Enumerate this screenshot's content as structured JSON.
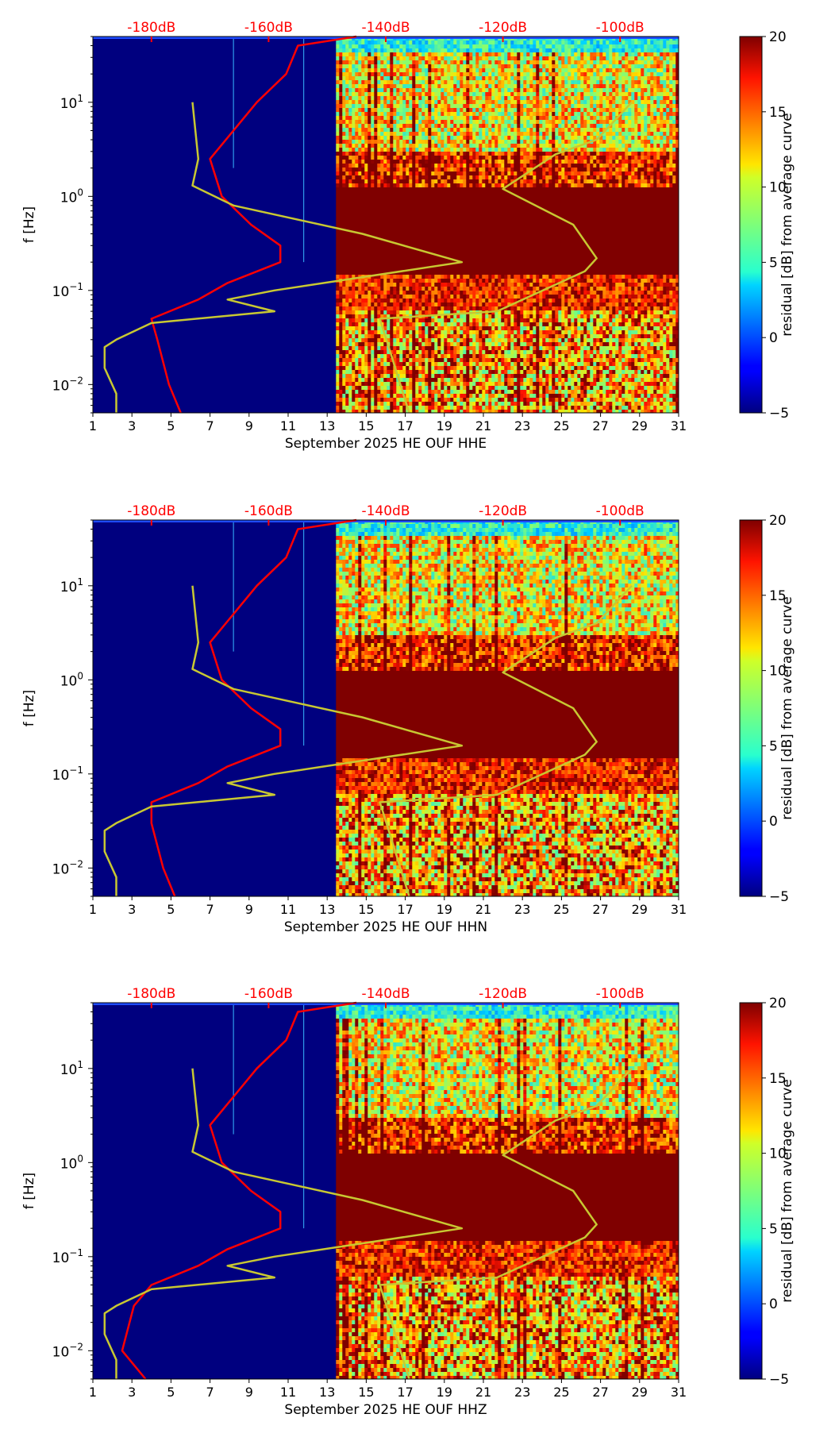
{
  "chart_data": [
    {
      "type": "heatmap",
      "xlabel": "September 2025 HE OUF  HHE",
      "ylabel": "f [Hz]",
      "x_ticks": [
        "1",
        "3",
        "5",
        "7",
        "9",
        "11",
        "13",
        "15",
        "17",
        "19",
        "21",
        "23",
        "25",
        "27",
        "29",
        "31"
      ],
      "y_ticks": [
        "10^-2",
        "10^-1",
        "10^0",
        "10^1"
      ],
      "xlim": [
        1,
        31
      ],
      "ylim_hz": [
        0.005,
        50
      ],
      "y_scale": "log",
      "top_axis_ticks": [
        "-180dB",
        "-160dB",
        "-140dB",
        "-120dB",
        "-100dB"
      ],
      "colorbar": {
        "label": "residual [dB] from average curve",
        "min": -5,
        "max": 20,
        "ticks": [
          "20",
          "15",
          "10",
          "5",
          "0",
          "−5"
        ],
        "colormap": "jet"
      },
      "data_start_day": 13.45,
      "series": [
        {
          "color": "#ff0000",
          "points": [
            [
              0.005,
              -175
            ],
            [
              0.01,
              -177
            ],
            [
              0.03,
              -179
            ],
            [
              0.05,
              -180
            ],
            [
              0.08,
              -172
            ],
            [
              0.12,
              -167
            ],
            [
              0.2,
              -158
            ],
            [
              0.3,
              -158
            ],
            [
              0.5,
              -163
            ],
            [
              1,
              -168
            ],
            [
              2.5,
              -170
            ],
            [
              5,
              -166
            ],
            [
              10,
              -162
            ],
            [
              20,
              -157
            ],
            [
              40,
              -155
            ],
            [
              50,
              -145
            ]
          ]
        },
        {
          "color": "#c8c832",
          "points": [
            [
              0.005,
              -186
            ],
            [
              0.008,
              -186
            ],
            [
              0.015,
              -188
            ],
            [
              0.025,
              -188
            ],
            [
              0.03,
              -186
            ],
            [
              0.045,
              -180
            ],
            [
              0.06,
              -159
            ],
            [
              0.08,
              -167
            ],
            [
              0.1,
              -159
            ],
            [
              0.2,
              -127
            ],
            [
              0.4,
              -144
            ],
            [
              0.8,
              -166
            ],
            [
              1.3,
              -173
            ],
            [
              2.5,
              -172
            ],
            [
              10,
              -173
            ]
          ]
        },
        {
          "color": "#c8c832",
          "points": [
            [
              0.005,
              -136
            ],
            [
              0.02,
              -139
            ],
            [
              0.05,
              -141
            ],
            [
              0.06,
              -121
            ],
            [
              0.16,
              -106
            ],
            [
              0.22,
              -104
            ],
            [
              0.5,
              -108
            ],
            [
              1.2,
              -120
            ],
            [
              2.8,
              -111
            ],
            [
              4,
              -104
            ],
            [
              10,
              -98
            ]
          ]
        }
      ]
    },
    {
      "type": "heatmap",
      "xlabel": "September 2025 HE OUF  HHN",
      "ylabel": "f [Hz]",
      "x_ticks": [
        "1",
        "3",
        "5",
        "7",
        "9",
        "11",
        "13",
        "15",
        "17",
        "19",
        "21",
        "23",
        "25",
        "27",
        "29",
        "31"
      ],
      "y_ticks": [
        "10^-2",
        "10^-1",
        "10^0",
        "10^1"
      ],
      "xlim": [
        1,
        31
      ],
      "ylim_hz": [
        0.005,
        50
      ],
      "y_scale": "log",
      "top_axis_ticks": [
        "-180dB",
        "-160dB",
        "-140dB",
        "-120dB",
        "-100dB"
      ],
      "colorbar": {
        "label": "residual [dB] from average curve",
        "min": -5,
        "max": 20,
        "ticks": [
          "20",
          "15",
          "10",
          "5",
          "0",
          "−5"
        ],
        "colormap": "jet"
      },
      "data_start_day": 13.45,
      "series": [
        {
          "color": "#ff0000",
          "points": [
            [
              0.005,
              -176
            ],
            [
              0.01,
              -178
            ],
            [
              0.03,
              -180
            ],
            [
              0.05,
              -180
            ],
            [
              0.08,
              -172
            ],
            [
              0.12,
              -167
            ],
            [
              0.2,
              -158
            ],
            [
              0.3,
              -158
            ],
            [
              0.5,
              -163
            ],
            [
              1,
              -168
            ],
            [
              2.5,
              -170
            ],
            [
              5,
              -166
            ],
            [
              10,
              -162
            ],
            [
              20,
              -157
            ],
            [
              40,
              -155
            ],
            [
              50,
              -145
            ]
          ]
        },
        {
          "color": "#c8c832",
          "points": [
            [
              0.005,
              -186
            ],
            [
              0.008,
              -186
            ],
            [
              0.015,
              -188
            ],
            [
              0.025,
              -188
            ],
            [
              0.03,
              -186
            ],
            [
              0.045,
              -180
            ],
            [
              0.06,
              -159
            ],
            [
              0.08,
              -167
            ],
            [
              0.1,
              -159
            ],
            [
              0.2,
              -127
            ],
            [
              0.4,
              -144
            ],
            [
              0.8,
              -166
            ],
            [
              1.3,
              -173
            ],
            [
              2.5,
              -172
            ],
            [
              10,
              -173
            ]
          ]
        },
        {
          "color": "#c8c832",
          "points": [
            [
              0.005,
              -136
            ],
            [
              0.02,
              -139
            ],
            [
              0.05,
              -141
            ],
            [
              0.06,
              -121
            ],
            [
              0.16,
              -106
            ],
            [
              0.22,
              -104
            ],
            [
              0.5,
              -108
            ],
            [
              1.2,
              -120
            ],
            [
              2.8,
              -111
            ],
            [
              4,
              -104
            ],
            [
              10,
              -98
            ]
          ]
        }
      ]
    },
    {
      "type": "heatmap",
      "xlabel": "September 2025 HE OUF  HHZ",
      "ylabel": "f [Hz]",
      "x_ticks": [
        "1",
        "3",
        "5",
        "7",
        "9",
        "11",
        "13",
        "15",
        "17",
        "19",
        "21",
        "23",
        "25",
        "27",
        "29",
        "31"
      ],
      "y_ticks": [
        "10^-2",
        "10^-1",
        "10^0",
        "10^1"
      ],
      "xlim": [
        1,
        31
      ],
      "ylim_hz": [
        0.005,
        50
      ],
      "y_scale": "log",
      "top_axis_ticks": [
        "-180dB",
        "-160dB",
        "-140dB",
        "-120dB",
        "-100dB"
      ],
      "colorbar": {
        "label": "residual [dB] from average curve",
        "min": -5,
        "max": 20,
        "ticks": [
          "20",
          "15",
          "10",
          "5",
          "0",
          "−5"
        ],
        "colormap": "jet"
      },
      "data_start_day": 13.45,
      "series": [
        {
          "color": "#ff0000",
          "points": [
            [
              0.005,
              -181
            ],
            [
              0.01,
              -185
            ],
            [
              0.03,
              -183
            ],
            [
              0.05,
              -180
            ],
            [
              0.08,
              -172
            ],
            [
              0.12,
              -167
            ],
            [
              0.2,
              -158
            ],
            [
              0.3,
              -158
            ],
            [
              0.5,
              -163
            ],
            [
              1,
              -168
            ],
            [
              2.5,
              -170
            ],
            [
              5,
              -166
            ],
            [
              10,
              -162
            ],
            [
              20,
              -157
            ],
            [
              40,
              -155
            ],
            [
              50,
              -145
            ]
          ]
        },
        {
          "color": "#c8c832",
          "points": [
            [
              0.005,
              -186
            ],
            [
              0.008,
              -186
            ],
            [
              0.015,
              -188
            ],
            [
              0.025,
              -188
            ],
            [
              0.03,
              -186
            ],
            [
              0.045,
              -180
            ],
            [
              0.06,
              -159
            ],
            [
              0.08,
              -167
            ],
            [
              0.1,
              -159
            ],
            [
              0.2,
              -127
            ],
            [
              0.4,
              -144
            ],
            [
              0.8,
              -166
            ],
            [
              1.3,
              -173
            ],
            [
              2.5,
              -172
            ],
            [
              10,
              -173
            ]
          ]
        },
        {
          "color": "#c8c832",
          "points": [
            [
              0.005,
              -136
            ],
            [
              0.02,
              -139
            ],
            [
              0.05,
              -141
            ],
            [
              0.06,
              -121
            ],
            [
              0.16,
              -106
            ],
            [
              0.22,
              -104
            ],
            [
              0.5,
              -108
            ],
            [
              1.2,
              -120
            ],
            [
              2.8,
              -111
            ],
            [
              4,
              -104
            ],
            [
              10,
              -98
            ]
          ]
        }
      ]
    }
  ]
}
